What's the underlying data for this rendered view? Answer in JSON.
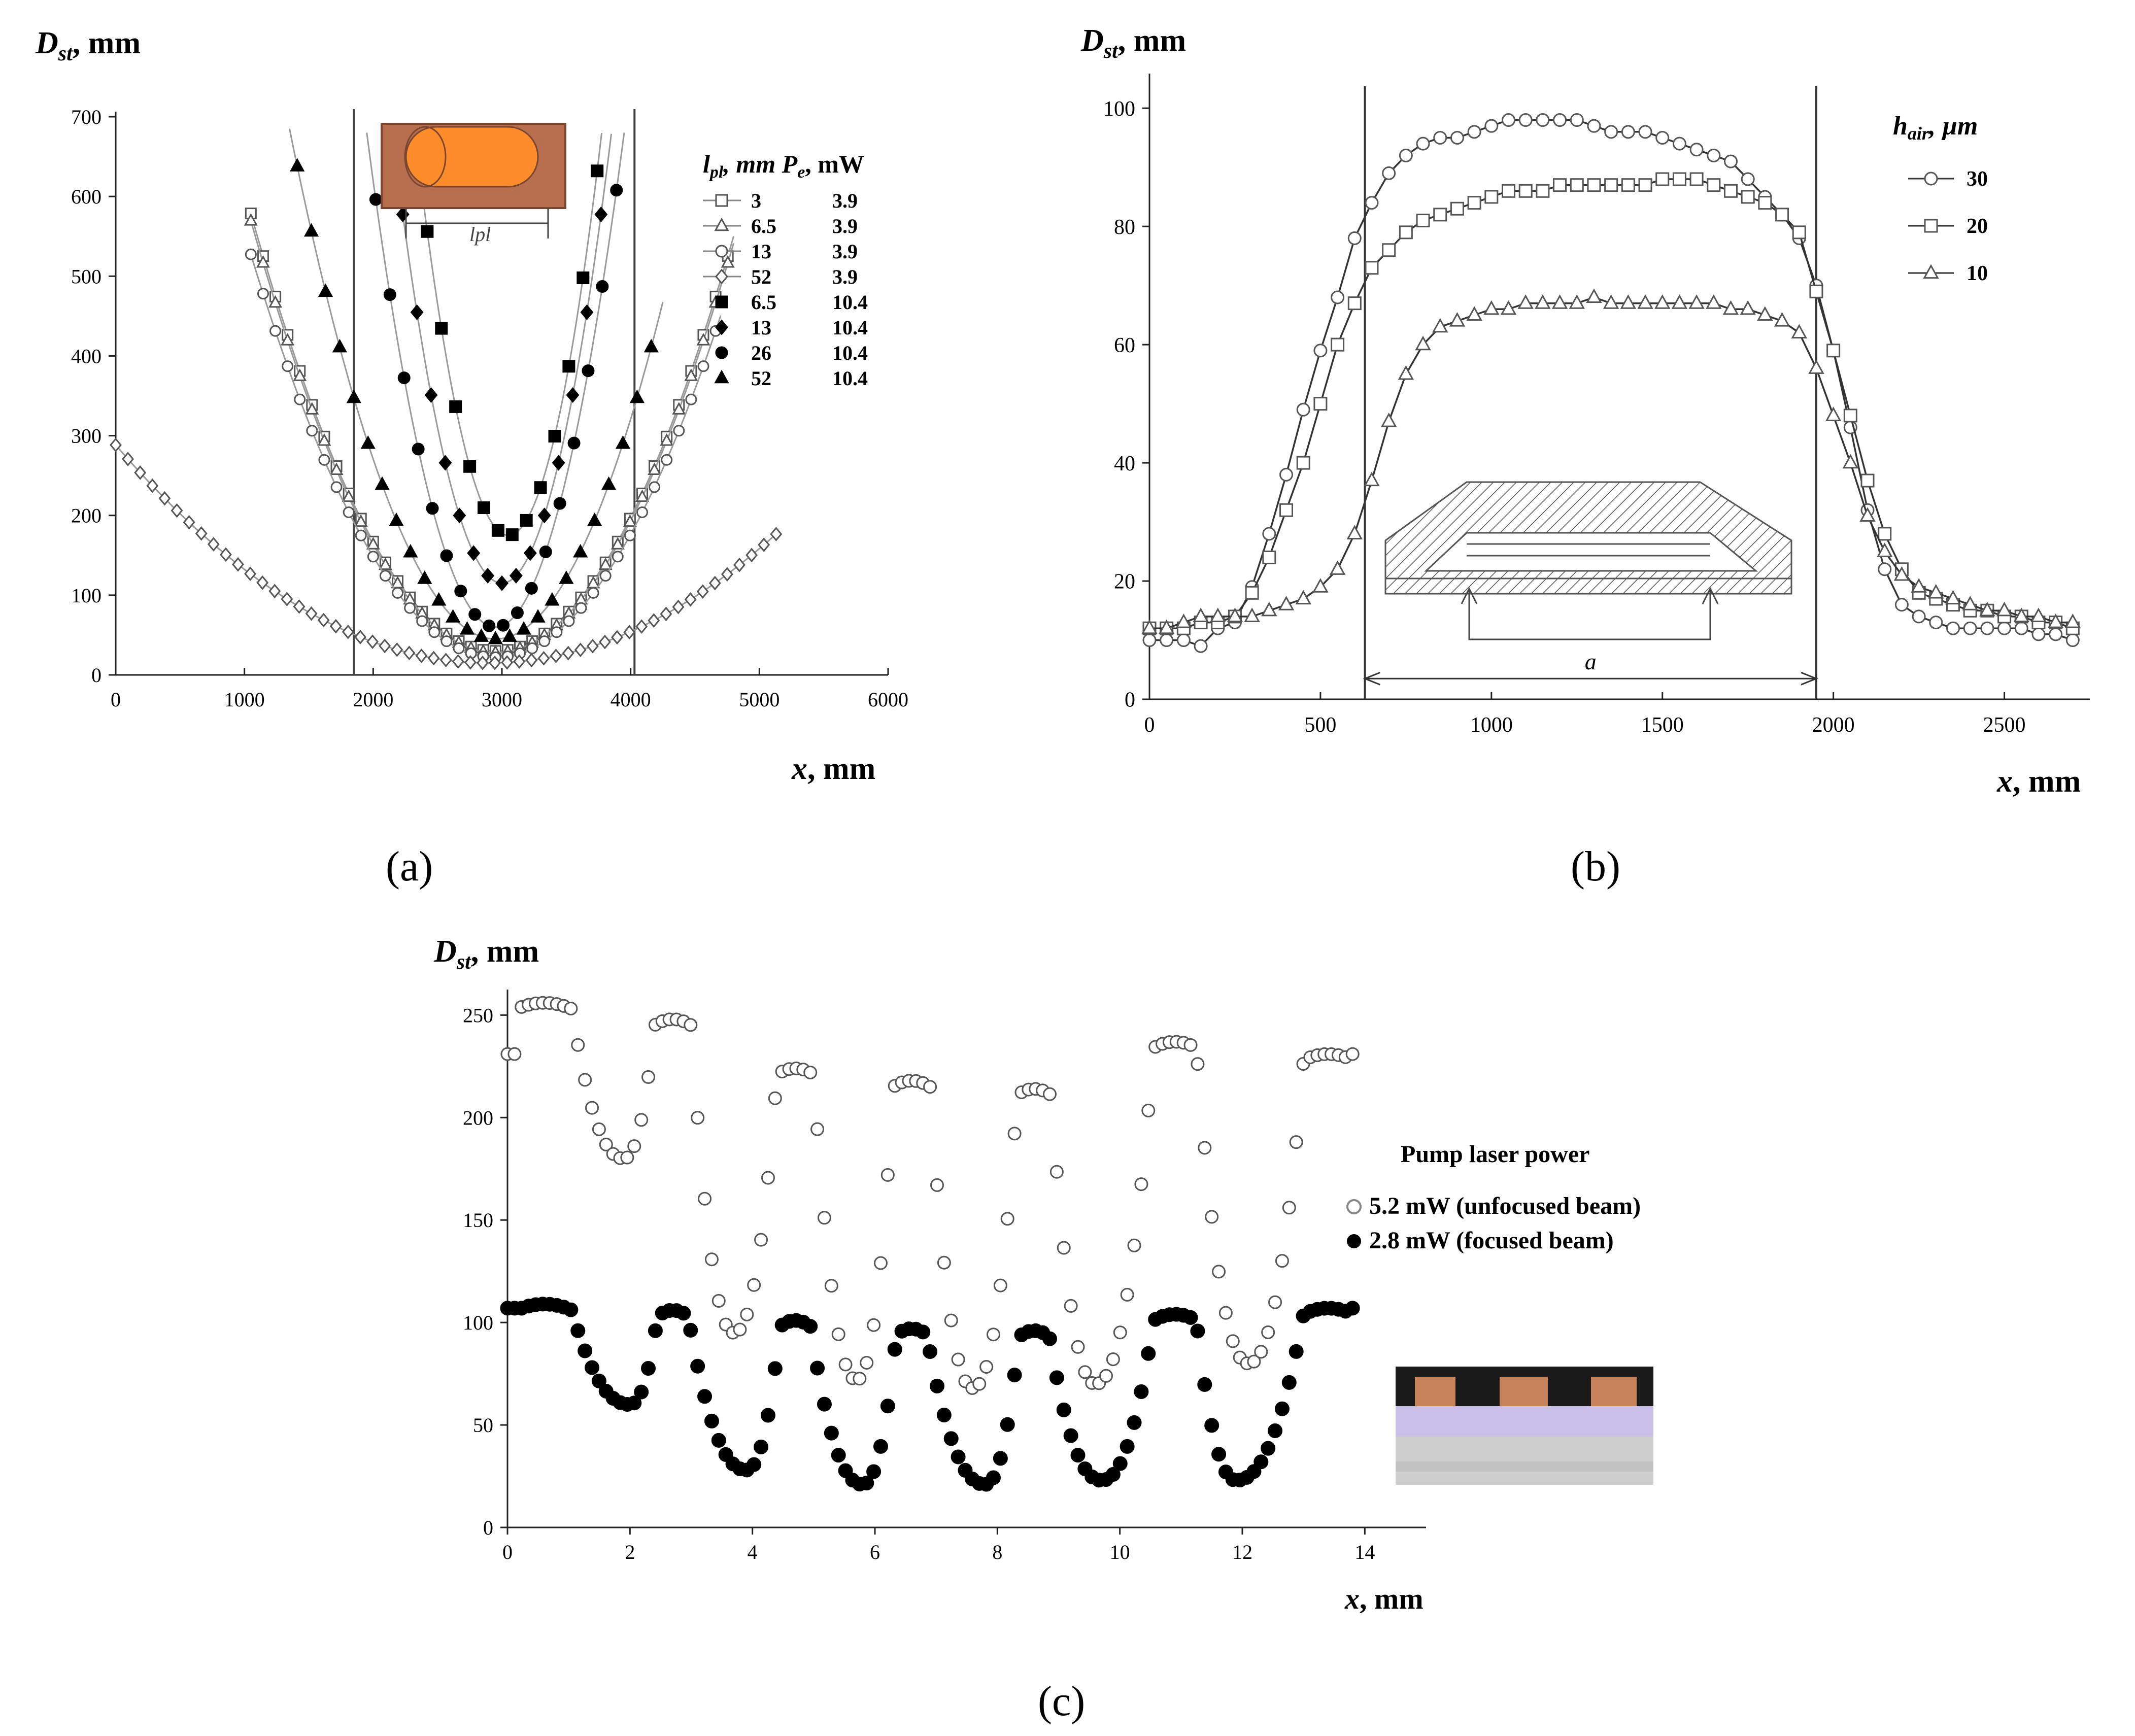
{
  "figure": {
    "panel_labels": [
      "(a)",
      "(b)",
      "(c)"
    ]
  },
  "chart_data": [
    {
      "panel": "a",
      "type": "scatter",
      "ylabel_main": "D",
      "ylabel_sub": "st",
      "ylabel_tail": ", mm",
      "xlabel_var": "x",
      "xlabel_tail": ", mm",
      "xlim": [
        0,
        6000
      ],
      "ylim": [
        0,
        700
      ],
      "xticks": [
        0,
        1000,
        2000,
        3000,
        4000,
        5000,
        6000
      ],
      "yticks": [
        0,
        100,
        200,
        300,
        400,
        500,
        600,
        700
      ],
      "vlines": [
        1850,
        4030
      ],
      "legend_header": [
        "l",
        "pl",
        ", mm P",
        "e",
        ", mW"
      ],
      "inset_label": "lpl",
      "series": [
        {
          "l_pl": "3",
          "P_e": "3.9",
          "marker": "open-square",
          "center": 2950,
          "min": 30,
          "a": 0.000152,
          "xrange": [
            1050,
            4800
          ]
        },
        {
          "l_pl": "6.5",
          "P_e": "3.9",
          "marker": "open-triangle",
          "center": 2950,
          "min": 28,
          "a": 0.00015,
          "xrange": [
            1050,
            4800
          ]
        },
        {
          "l_pl": "13",
          "P_e": "3.9",
          "marker": "open-circle",
          "center": 2950,
          "min": 22,
          "a": 0.00014,
          "xrange": [
            1050,
            4700
          ]
        },
        {
          "l_pl": "52",
          "P_e": "3.9",
          "marker": "open-diamond",
          "center": 2900,
          "min": 15,
          "a": 3.25e-05,
          "xrange": [
            0,
            5150
          ]
        },
        {
          "l_pl": "6.5",
          "P_e": "10.4",
          "marker": "filled-square",
          "center": 3050,
          "min": 175,
          "a": 0.00096,
          "xrange": [
            2200,
            4000
          ]
        },
        {
          "l_pl": "13",
          "P_e": "10.4",
          "marker": "filled-diamond",
          "center": 3000,
          "min": 115,
          "a": 0.00078,
          "xrange": [
            1900,
            4100
          ]
        },
        {
          "l_pl": "26",
          "P_e": "10.4",
          "marker": "filled-circle",
          "center": 2950,
          "min": 60,
          "a": 0.00062,
          "xrange": [
            1800,
            4150
          ]
        },
        {
          "l_pl": "52",
          "P_e": "10.4",
          "marker": "filled-triangle",
          "center": 2950,
          "min": 45,
          "a": 0.00025,
          "xrange": [
            1300,
            4250
          ]
        }
      ]
    },
    {
      "panel": "b",
      "type": "line",
      "ylabel_main": "D",
      "ylabel_sub": "st",
      "ylabel_tail": ", mm",
      "xlabel_var": "x",
      "xlabel_tail": ", mm",
      "xlim": [
        0,
        2750
      ],
      "ylim": [
        0,
        105
      ],
      "xticks": [
        0,
        500,
        1000,
        1500,
        2000,
        2500
      ],
      "yticks": [
        0,
        20,
        40,
        60,
        80,
        100
      ],
      "vlines": [
        630,
        1950
      ],
      "legend_title_main": "h",
      "legend_title_sub": "air",
      "legend_title_tail": ", µm",
      "inset_label": "a",
      "series": [
        {
          "name": "30",
          "marker": "open-circle",
          "x": [
            0,
            50,
            100,
            150,
            200,
            250,
            300,
            350,
            400,
            450,
            500,
            550,
            600,
            650,
            700,
            750,
            800,
            850,
            900,
            950,
            1000,
            1050,
            1100,
            1150,
            1200,
            1250,
            1300,
            1350,
            1400,
            1450,
            1500,
            1550,
            1600,
            1650,
            1700,
            1750,
            1800,
            1850,
            1900,
            1950,
            2000,
            2050,
            2100,
            2150,
            2200,
            2250,
            2300,
            2350,
            2400,
            2450,
            2500,
            2550,
            2600,
            2650,
            2700
          ],
          "y": [
            10,
            10,
            10,
            9,
            12,
            13,
            19,
            28,
            38,
            49,
            59,
            68,
            78,
            84,
            89,
            92,
            94,
            95,
            95,
            96,
            97,
            98,
            98,
            98,
            98,
            98,
            97,
            96,
            96,
            96,
            95,
            94,
            93,
            92,
            91,
            88,
            85,
            82,
            78,
            70,
            59,
            46,
            32,
            22,
            16,
            14,
            13,
            12,
            12,
            12,
            12,
            12,
            11,
            11,
            10
          ]
        },
        {
          "name": "20",
          "marker": "open-square",
          "x": [
            0,
            50,
            100,
            150,
            200,
            250,
            300,
            350,
            400,
            450,
            500,
            550,
            600,
            650,
            700,
            750,
            800,
            850,
            900,
            950,
            1000,
            1050,
            1100,
            1150,
            1200,
            1250,
            1300,
            1350,
            1400,
            1450,
            1500,
            1550,
            1600,
            1650,
            1700,
            1750,
            1800,
            1850,
            1900,
            1950,
            2000,
            2050,
            2100,
            2150,
            2200,
            2250,
            2300,
            2350,
            2400,
            2450,
            2500,
            2550,
            2600,
            2650,
            2700
          ],
          "y": [
            12,
            12,
            12,
            13,
            13,
            14,
            18,
            24,
            32,
            40,
            50,
            60,
            67,
            73,
            76,
            79,
            81,
            82,
            83,
            84,
            85,
            86,
            86,
            86,
            87,
            87,
            87,
            87,
            87,
            87,
            88,
            88,
            88,
            87,
            86,
            85,
            84,
            82,
            79,
            69,
            59,
            48,
            37,
            28,
            22,
            18,
            17,
            16,
            15,
            15,
            14,
            14,
            13,
            13,
            12
          ]
        },
        {
          "name": "10",
          "marker": "open-triangle",
          "x": [
            0,
            50,
            100,
            150,
            200,
            250,
            300,
            350,
            400,
            450,
            500,
            550,
            600,
            650,
            700,
            750,
            800,
            850,
            900,
            950,
            1000,
            1050,
            1100,
            1150,
            1200,
            1250,
            1300,
            1350,
            1400,
            1450,
            1500,
            1550,
            1600,
            1650,
            1700,
            1750,
            1800,
            1850,
            1900,
            1950,
            2000,
            2050,
            2100,
            2150,
            2200,
            2250,
            2300,
            2350,
            2400,
            2450,
            2500,
            2550,
            2600,
            2650,
            2700
          ],
          "y": [
            12,
            12,
            13,
            14,
            14,
            14,
            14,
            15,
            16,
            17,
            19,
            22,
            28,
            37,
            47,
            55,
            60,
            63,
            64,
            65,
            66,
            66,
            67,
            67,
            67,
            67,
            68,
            67,
            67,
            67,
            67,
            67,
            67,
            67,
            66,
            66,
            65,
            64,
            62,
            56,
            48,
            40,
            31,
            25,
            21,
            19,
            18,
            17,
            16,
            15,
            15,
            14,
            14,
            13,
            13
          ]
        }
      ]
    },
    {
      "panel": "c",
      "type": "scatter",
      "ylabel_main": "D",
      "ylabel_sub": "st",
      "ylabel_tail": ", mm",
      "xlabel_var": "x",
      "xlabel_tail": ", mm",
      "xlim": [
        0,
        15
      ],
      "ylim": [
        0,
        260
      ],
      "xticks": [
        0,
        2,
        4,
        6,
        8,
        10,
        12,
        14
      ],
      "yticks": [
        0,
        50,
        100,
        150,
        200,
        250
      ],
      "legend_title": "Pump laser power",
      "series": [
        {
          "name": "5.2 mW (unfocused beam)",
          "marker": "open-circle",
          "peaks": [
            [
              0.6,
              256,
              0.9
            ],
            [
              2.7,
              248,
              0.6
            ],
            [
              4.7,
              224,
              0.6
            ],
            [
              6.6,
              218,
              0.6
            ],
            [
              8.6,
              214,
              0.55
            ],
            [
              10.9,
              237,
              0.7
            ],
            [
              13.4,
              231,
              0.8
            ]
          ],
          "valleys": [
            [
              1.9,
              180
            ],
            [
              3.7,
              95
            ],
            [
              5.7,
              72
            ],
            [
              7.6,
              68
            ],
            [
              9.6,
              70
            ],
            [
              12.1,
              80
            ]
          ]
        },
        {
          "name": "2.8 mW (focused beam)",
          "marker": "filled-circle",
          "peaks": [
            [
              0.6,
              109,
              0.9
            ],
            [
              2.7,
              106,
              0.5
            ],
            [
              4.7,
              101,
              0.5
            ],
            [
              6.6,
              97,
              0.5
            ],
            [
              8.6,
              96,
              0.5
            ],
            [
              10.9,
              104,
              0.7
            ],
            [
              13.4,
              107,
              0.8
            ]
          ],
          "valleys": [
            [
              2.0,
              60
            ],
            [
              3.9,
              28
            ],
            [
              5.8,
              21
            ],
            [
              7.8,
              21
            ],
            [
              9.7,
              23
            ],
            [
              11.9,
              23
            ]
          ]
        }
      ]
    }
  ],
  "colors": {
    "inset_bg": "#b86f4f",
    "inset_cyl": "#ff8c2a",
    "layer_top": "#1a1a1a",
    "layer_copper": "#c8835d",
    "layer_lilac": "#c9bfe8",
    "layer_gray": "#cfcfcf"
  }
}
